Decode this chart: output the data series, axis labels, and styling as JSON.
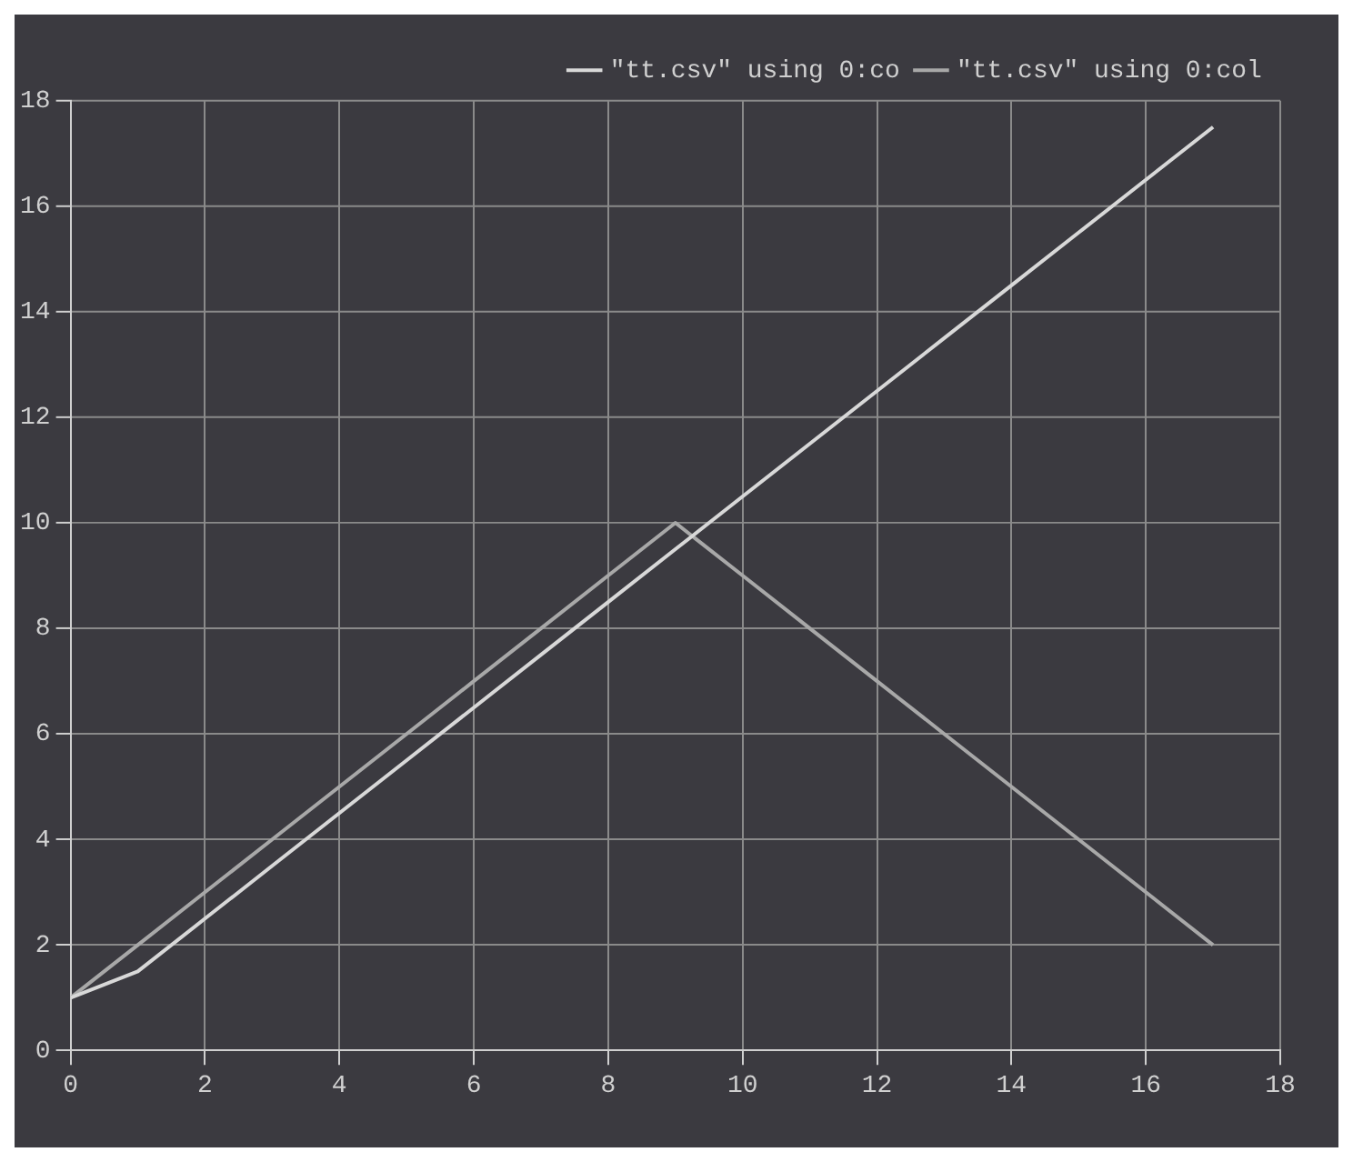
{
  "chart_data": {
    "type": "line",
    "x": [
      0,
      1,
      2,
      3,
      4,
      5,
      6,
      7,
      8,
      9,
      10,
      11,
      12,
      13,
      14,
      15,
      16,
      17
    ],
    "series": [
      {
        "name": "\"tt.csv\" using 0:co",
        "color": "#d8d8d8",
        "values": [
          1,
          1.5,
          2.5,
          3.5,
          4.5,
          5.5,
          6.5,
          7.5,
          8.5,
          9.5,
          10.5,
          11.5,
          12.5,
          13.5,
          14.5,
          15.5,
          16.5,
          17.5
        ]
      },
      {
        "name": "\"tt.csv\" using 0:col",
        "color": "#a8a8a8",
        "values": [
          1,
          2,
          3,
          4,
          5,
          6,
          7,
          8,
          9,
          10,
          9,
          8,
          7,
          6,
          5,
          4,
          3,
          2
        ]
      }
    ],
    "xlim": [
      0,
      18
    ],
    "xticks": [
      0,
      2,
      4,
      6,
      8,
      10,
      12,
      14,
      16,
      18
    ],
    "ylim": [
      0,
      18
    ],
    "yticks": [
      0,
      2,
      4,
      6,
      8,
      10,
      12,
      14,
      16,
      18
    ],
    "grid": true,
    "legend": "top right",
    "marker": "none",
    "line_style": "solid"
  }
}
